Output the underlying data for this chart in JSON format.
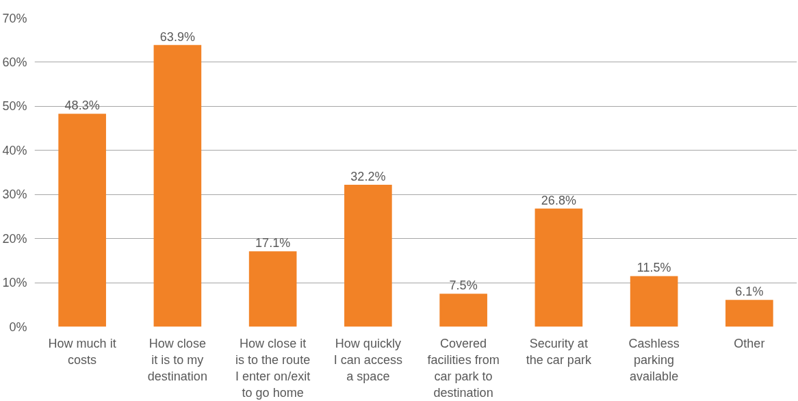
{
  "chart_data": {
    "type": "bar",
    "categories": [
      "How much it\ncosts",
      "How close\nit is to my\ndestination",
      "How close it\nis to the route\nI enter on/exit\nto go home",
      "How quickly\nI can access\na space",
      "Covered\nfacilities from\ncar park to\ndestination",
      "Security at\nthe car park",
      "Cashless\nparking\navailable",
      "Other"
    ],
    "values": [
      48.3,
      63.9,
      17.1,
      32.2,
      7.5,
      26.8,
      11.5,
      6.1
    ],
    "value_labels": [
      "48.3%",
      "63.9%",
      "17.1%",
      "32.2%",
      "7.5%",
      "26.8%",
      "11.5%",
      "6.1%"
    ],
    "color": "#f28226",
    "ylim": [
      0,
      70
    ],
    "yticks": [
      {
        "value": 0,
        "label": "0%"
      },
      {
        "value": 10,
        "label": "10%"
      },
      {
        "value": 20,
        "label": "20%"
      },
      {
        "value": 30,
        "label": "30%"
      },
      {
        "value": 40,
        "label": "40%"
      },
      {
        "value": 50,
        "label": "50%"
      },
      {
        "value": 60,
        "label": "60%"
      },
      {
        "value": 70,
        "label": "70%"
      }
    ],
    "grid": "y"
  }
}
